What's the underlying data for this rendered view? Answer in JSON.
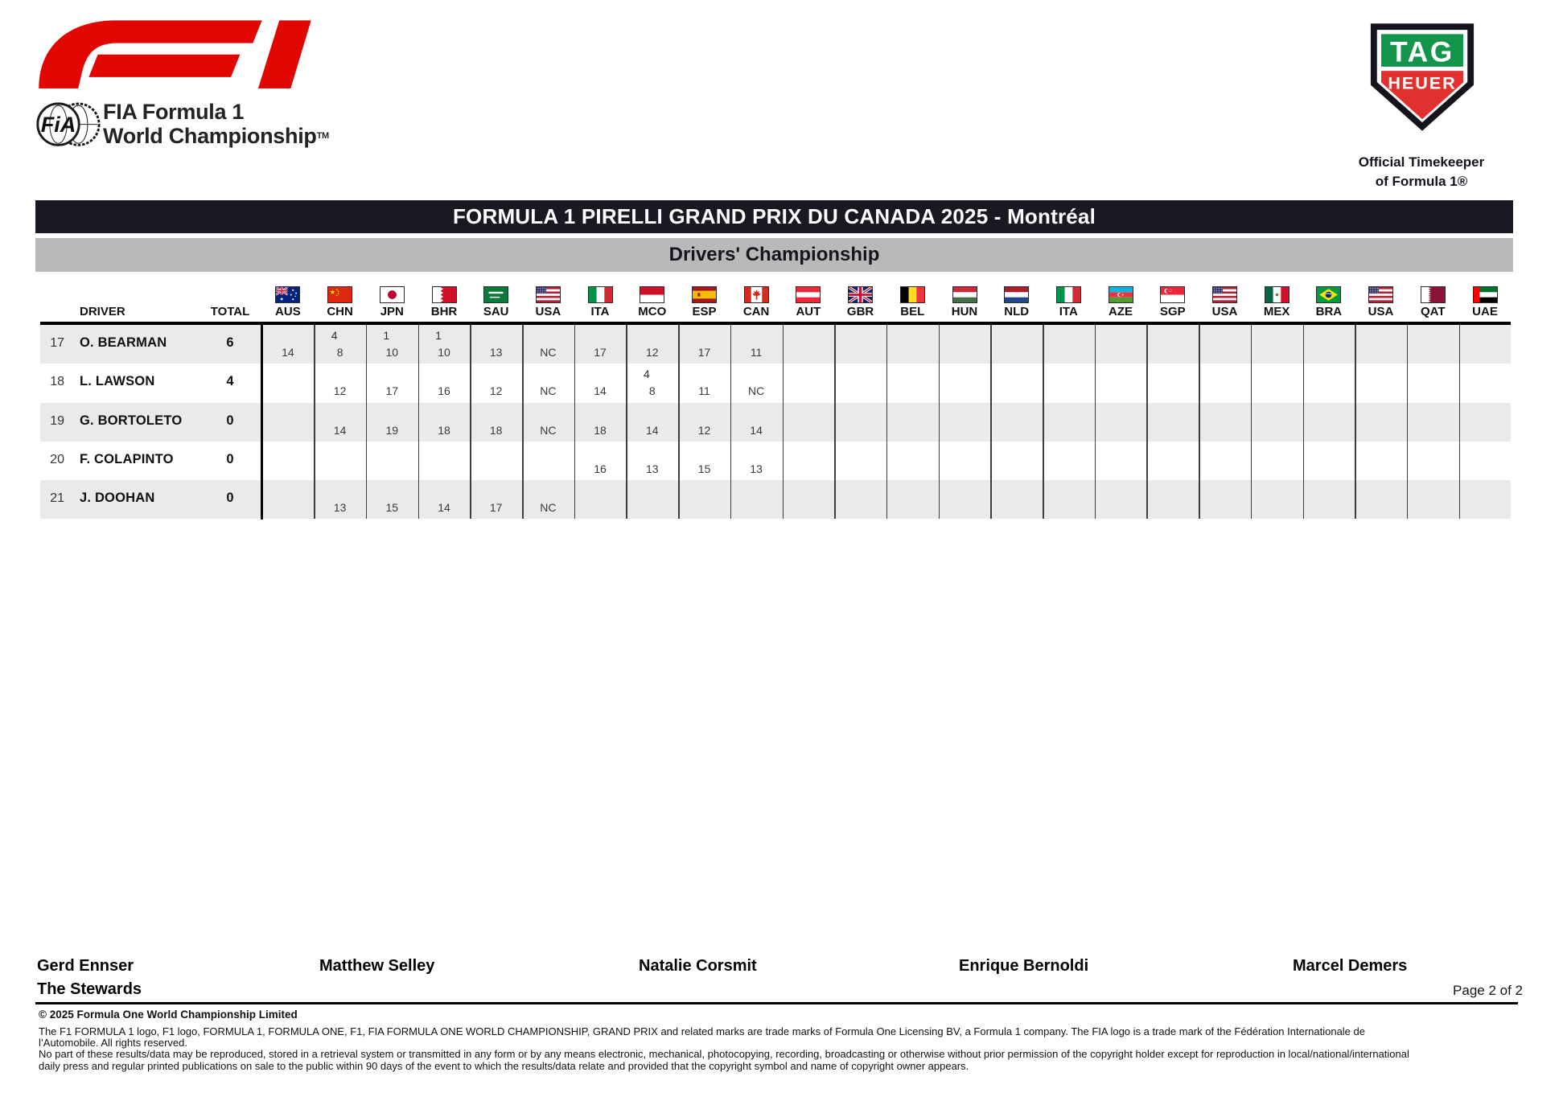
{
  "header": {
    "fia_line1": "FIA Formula 1",
    "fia_line2": "World Championship",
    "fia_tm": "TM",
    "tag": {
      "top": "TAG",
      "bottom": "HEUER",
      "caption1": "Official Timekeeper",
      "caption2": "of Formula 1®"
    }
  },
  "title_bar": {
    "text": "FORMULA 1 PIRELLI GRAND PRIX DU CANADA 2025 - Montréal"
  },
  "subtitle_bar": {
    "text": "Drivers' Championship"
  },
  "table": {
    "driver_header": "DRIVER",
    "total_header": "TOTAL",
    "races": [
      {
        "code": "AUS",
        "flag": "aus"
      },
      {
        "code": "CHN",
        "flag": "chn"
      },
      {
        "code": "JPN",
        "flag": "jpn"
      },
      {
        "code": "BHR",
        "flag": "bhr"
      },
      {
        "code": "SAU",
        "flag": "sau"
      },
      {
        "code": "USA",
        "flag": "usa"
      },
      {
        "code": "ITA",
        "flag": "ita"
      },
      {
        "code": "MCO",
        "flag": "mco"
      },
      {
        "code": "ESP",
        "flag": "esp"
      },
      {
        "code": "CAN",
        "flag": "can"
      },
      {
        "code": "AUT",
        "flag": "aut"
      },
      {
        "code": "GBR",
        "flag": "gbr"
      },
      {
        "code": "BEL",
        "flag": "bel"
      },
      {
        "code": "HUN",
        "flag": "hun"
      },
      {
        "code": "NLD",
        "flag": "nld"
      },
      {
        "code": "ITA",
        "flag": "ita"
      },
      {
        "code": "AZE",
        "flag": "aze"
      },
      {
        "code": "SGP",
        "flag": "sgp"
      },
      {
        "code": "USA",
        "flag": "usa"
      },
      {
        "code": "MEX",
        "flag": "mex"
      },
      {
        "code": "BRA",
        "flag": "bra"
      },
      {
        "code": "USA",
        "flag": "usa"
      },
      {
        "code": "QAT",
        "flag": "qat"
      },
      {
        "code": "UAE",
        "flag": "uae"
      }
    ],
    "rows": [
      {
        "pos": "17",
        "driver": "O. BEARMAN",
        "total": "6",
        "results": [
          {
            "race": "14"
          },
          {
            "pts": "4",
            "race": "8"
          },
          {
            "pts": "1",
            "race": "10"
          },
          {
            "pts": "1",
            "race": "10"
          },
          {
            "race": "13"
          },
          {
            "race": "NC"
          },
          {
            "race": "17"
          },
          {
            "race": "12"
          },
          {
            "race": "17"
          },
          {
            "race": "11"
          },
          null,
          null,
          null,
          null,
          null,
          null,
          null,
          null,
          null,
          null,
          null,
          null,
          null,
          null
        ]
      },
      {
        "pos": "18",
        "driver": "L. LAWSON",
        "total": "4",
        "results": [
          null,
          {
            "race": "12"
          },
          {
            "race": "17"
          },
          {
            "race": "16"
          },
          {
            "race": "12"
          },
          {
            "race": "NC"
          },
          {
            "race": "14"
          },
          {
            "pts": "4",
            "race": "8"
          },
          {
            "race": "11"
          },
          {
            "race": "NC"
          },
          null,
          null,
          null,
          null,
          null,
          null,
          null,
          null,
          null,
          null,
          null,
          null,
          null,
          null
        ]
      },
      {
        "pos": "19",
        "driver": "G. BORTOLETO",
        "total": "0",
        "results": [
          null,
          {
            "race": "14"
          },
          {
            "race": "19"
          },
          {
            "race": "18"
          },
          {
            "race": "18"
          },
          {
            "race": "NC"
          },
          {
            "race": "18"
          },
          {
            "race": "14"
          },
          {
            "race": "12"
          },
          {
            "race": "14"
          },
          null,
          null,
          null,
          null,
          null,
          null,
          null,
          null,
          null,
          null,
          null,
          null,
          null,
          null
        ]
      },
      {
        "pos": "20",
        "driver": "F. COLAPINTO",
        "total": "0",
        "results": [
          null,
          null,
          null,
          null,
          null,
          null,
          {
            "race": "16"
          },
          {
            "race": "13"
          },
          {
            "race": "15"
          },
          {
            "race": "13"
          },
          null,
          null,
          null,
          null,
          null,
          null,
          null,
          null,
          null,
          null,
          null,
          null,
          null,
          null
        ]
      },
      {
        "pos": "21",
        "driver": "J. DOOHAN",
        "total": "0",
        "results": [
          null,
          {
            "race": "13"
          },
          {
            "race": "15"
          },
          {
            "race": "14"
          },
          {
            "race": "17"
          },
          {
            "race": "NC"
          },
          null,
          null,
          null,
          null,
          null,
          null,
          null,
          null,
          null,
          null,
          null,
          null,
          null,
          null,
          null,
          null,
          null,
          null
        ]
      }
    ]
  },
  "footer": {
    "signatories": [
      "Gerd Ennser",
      "Matthew Selley",
      "Natalie Corsmit",
      "Enrique Bernoldi",
      "Marcel Demers"
    ],
    "stewards_label": "The Stewards",
    "page_label": "Page 2 of 2",
    "copyright": "© 2025 Formula One World Championship Limited",
    "legal_lines": [
      "The F1 FORMULA 1 logo, F1 logo, FORMULA 1, FORMULA ONE, F1, FIA FORMULA ONE WORLD CHAMPIONSHIP, GRAND PRIX and related marks are trade marks of Formula One Licensing BV, a Formula 1 company. The FIA logo is a trade mark of the Fédération Internationale de",
      "l’Automobile. All rights reserved.",
      "No part of these results/data may be reproduced, stored in a retrieval system or transmitted in any form or by any means electronic, mechanical, photocopying, recording, broadcasting or otherwise without prior permission of the copyright holder except for reproduction in local/national/international",
      "daily press and regular printed publications on sale to the public within 90 days of the event to which the results/data relate and provided that the copyright symbol and name of copyright owner appears."
    ]
  },
  "colors": {
    "f1_red": "#e10600",
    "title_bar_bg": "#191923",
    "subtitle_bar_bg": "#b9b9b9",
    "row_alt_bg": "#eaeaea",
    "tag_green": "#13954b",
    "tag_red": "#e0312e"
  }
}
